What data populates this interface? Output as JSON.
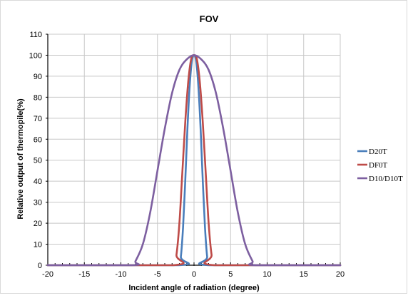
{
  "chart_data": {
    "type": "line",
    "title": "FOV",
    "xlabel": "Incident angle of radiation (degree)",
    "ylabel": "Relative output of thermopile(%)",
    "xlim": [
      -20,
      20
    ],
    "ylim": [
      0,
      110
    ],
    "xticks": [
      -20,
      -15,
      -10,
      -5,
      0,
      5,
      10,
      15,
      20
    ],
    "yticks": [
      0,
      10,
      20,
      30,
      40,
      50,
      60,
      70,
      80,
      90,
      100,
      110
    ],
    "grid": true,
    "legend_position": "right",
    "series": [
      {
        "name": "D20T",
        "color": "#4a7ebb",
        "x": [
          -20,
          -2.1,
          -1.8,
          -1.5,
          -1.2,
          -0.9,
          -0.6,
          -0.3,
          0,
          0.3,
          0.6,
          0.9,
          1.2,
          1.5,
          1.8,
          2.1,
          20
        ],
        "y": [
          0,
          0,
          4,
          18,
          40,
          65,
          85,
          97,
          100,
          97,
          85,
          65,
          40,
          18,
          4,
          0,
          0
        ]
      },
      {
        "name": "DF0T",
        "color": "#be4b48",
        "x": [
          -20,
          -2.8,
          -2.4,
          -2.0,
          -1.6,
          -1.2,
          -0.8,
          -0.4,
          0,
          0.4,
          0.8,
          1.2,
          1.6,
          2.0,
          2.4,
          2.8,
          20
        ],
        "y": [
          0,
          0,
          5,
          20,
          44,
          68,
          87,
          98,
          100,
          98,
          87,
          68,
          44,
          20,
          5,
          0,
          0
        ]
      },
      {
        "name": "D10/D10T",
        "color": "#7d5fa0",
        "x": [
          -20,
          -8.5,
          -8,
          -7,
          -6,
          -5,
          -4,
          -3,
          -2,
          -1,
          0,
          1,
          2,
          3,
          4,
          5,
          6,
          7,
          8,
          8.5,
          20
        ],
        "y": [
          0,
          0,
          2,
          10,
          25,
          45,
          65,
          82,
          93,
          98,
          100,
          98,
          93,
          82,
          65,
          45,
          25,
          10,
          2,
          0,
          0
        ]
      }
    ]
  }
}
